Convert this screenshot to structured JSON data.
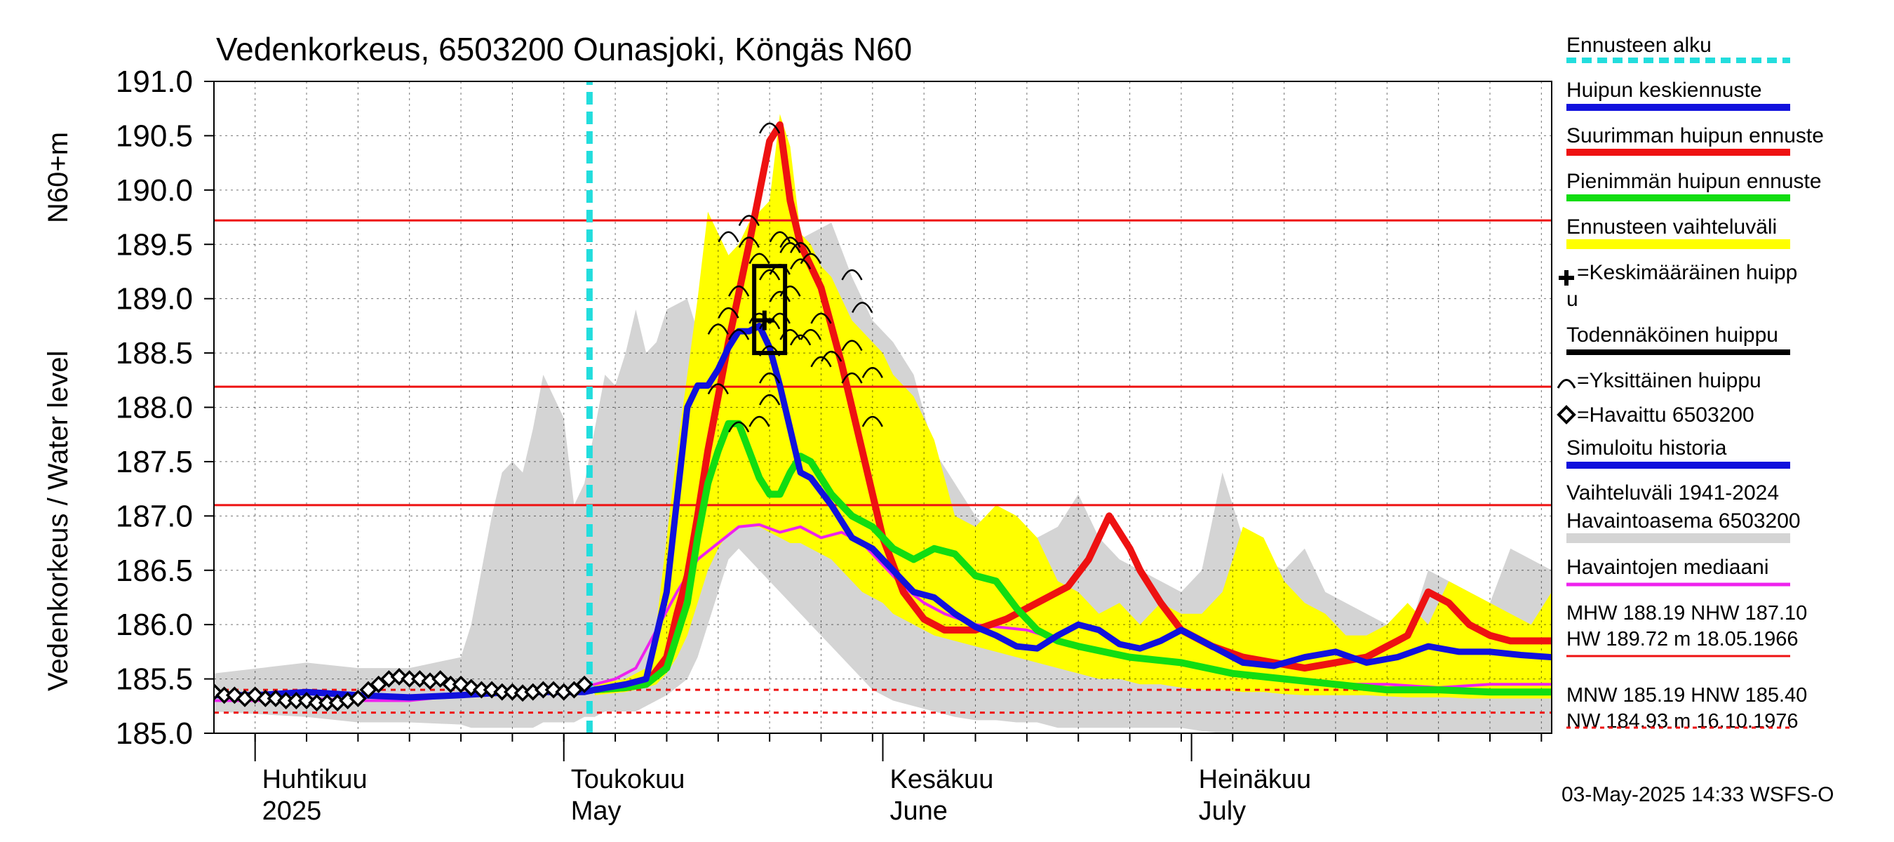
{
  "chart_data": {
    "type": "line",
    "title": "Vedenkorkeus, 6503200 Ounasjoki, Köngäs N60",
    "ylabel_main": "Vedenkorkeus / Water level",
    "ylabel_unit": "N60+m",
    "ylim": [
      185.0,
      191.0
    ],
    "y_ticks": [
      "185.0",
      "185.5",
      "186.0",
      "186.5",
      "187.0",
      "187.5",
      "188.0",
      "188.5",
      "189.0",
      "189.5",
      "190.0",
      "190.5",
      "191.0"
    ],
    "x_range_days": [
      -4,
      126
    ],
    "month_labels": [
      {
        "fi": "Huhtikuu",
        "en": "2025",
        "day": 0
      },
      {
        "fi": "Toukokuu",
        "en": "May",
        "day": 30
      },
      {
        "fi": "Kesäkuu",
        "en": "June",
        "day": 61
      },
      {
        "fi": "Heinäkuu",
        "en": "July",
        "day": 91
      }
    ],
    "forecast_start_day": 32.5,
    "reference_lines": [
      {
        "name": "HW",
        "value": 189.72,
        "style": "solid"
      },
      {
        "name": "MHW",
        "value": 188.19,
        "style": "solid"
      },
      {
        "name": "NHW",
        "value": 187.1,
        "style": "solid"
      },
      {
        "name": "HNW",
        "value": 185.4,
        "style": "dashed"
      },
      {
        "name": "MNW",
        "value": 185.19,
        "style": "dashed"
      }
    ],
    "historical_range": {
      "x": [
        -4,
        5,
        10,
        15,
        20,
        21,
        22,
        23,
        24,
        25,
        26,
        27,
        28,
        29,
        30,
        31,
        32,
        33,
        34,
        35,
        36,
        37,
        38,
        39,
        40,
        42,
        43,
        44,
        45,
        46,
        47,
        48,
        49,
        50,
        52,
        54,
        56,
        58,
        60,
        62,
        64,
        66,
        68,
        70,
        72,
        74,
        76,
        78,
        80,
        82,
        84,
        86,
        88,
        90,
        92,
        94,
        96,
        98,
        100,
        102,
        104,
        106,
        108,
        110,
        112,
        114,
        116,
        118,
        120,
        122,
        124,
        126
      ],
      "upper": [
        185.55,
        185.65,
        185.6,
        185.6,
        185.7,
        186.0,
        186.5,
        187.0,
        187.4,
        187.5,
        187.4,
        187.8,
        188.3,
        188.1,
        187.9,
        187.1,
        187.3,
        187.8,
        188.3,
        188.2,
        188.5,
        188.9,
        188.5,
        188.6,
        188.9,
        189.0,
        188.7,
        189.1,
        189.3,
        189.1,
        189.3,
        189.6,
        189.4,
        189.2,
        189.5,
        189.6,
        189.7,
        189.2,
        188.8,
        188.6,
        188.3,
        187.6,
        187.3,
        187.0,
        186.8,
        186.9,
        186.8,
        186.9,
        187.2,
        186.8,
        186.6,
        186.5,
        186.4,
        186.3,
        186.5,
        187.4,
        186.8,
        186.6,
        186.5,
        186.7,
        186.3,
        186.2,
        186.1,
        186.0,
        185.9,
        186.5,
        186.4,
        186.3,
        186.2,
        186.7,
        186.6,
        186.5
      ],
      "lower": [
        185.2,
        185.15,
        185.1,
        185.1,
        185.08,
        185.05,
        185.05,
        185.05,
        185.05,
        185.05,
        185.05,
        185.05,
        185.1,
        185.1,
        185.1,
        185.1,
        185.15,
        185.15,
        185.2,
        185.2,
        185.2,
        185.2,
        185.25,
        185.3,
        185.35,
        185.5,
        185.7,
        186.0,
        186.3,
        186.6,
        186.7,
        186.6,
        186.5,
        186.4,
        186.2,
        186.0,
        185.8,
        185.6,
        185.4,
        185.3,
        185.25,
        185.2,
        185.15,
        185.12,
        185.12,
        185.1,
        185.1,
        185.05,
        185.05,
        185.05,
        185.05,
        185.05,
        185.05,
        185.05,
        185.02,
        185.0,
        185.0,
        185.0,
        185.0,
        185.0,
        185.0,
        185.0,
        185.0,
        185.0,
        185.0,
        185.0,
        185.0,
        185.0,
        185.0,
        185.0,
        185.0,
        185.0
      ]
    },
    "forecast_range": {
      "x": [
        33,
        36,
        38,
        39,
        40,
        41,
        42,
        43,
        44,
        45,
        46,
        47,
        48,
        49,
        50,
        51,
        52,
        53,
        54,
        55,
        56,
        57,
        58,
        59,
        60,
        61,
        62,
        64,
        66,
        68,
        70,
        72,
        74,
        76,
        78,
        80,
        82,
        84,
        86,
        88,
        90,
        92,
        94,
        96,
        98,
        100,
        102,
        104,
        106,
        108,
        110,
        112,
        114,
        116,
        118,
        120,
        122,
        124,
        126
      ],
      "upper": [
        185.45,
        185.5,
        185.6,
        186.0,
        186.8,
        187.6,
        188.3,
        189.0,
        189.8,
        189.6,
        189.4,
        189.5,
        189.7,
        189.8,
        189.9,
        190.7,
        190.4,
        189.6,
        189.5,
        189.3,
        189.2,
        189.0,
        188.8,
        188.7,
        188.6,
        188.5,
        188.3,
        188.1,
        187.7,
        187.0,
        186.9,
        187.1,
        187.0,
        186.8,
        186.4,
        186.3,
        186.1,
        186.2,
        186.0,
        186.2,
        186.1,
        186.1,
        186.3,
        186.9,
        186.8,
        186.4,
        186.2,
        186.1,
        185.9,
        185.9,
        186.0,
        186.2,
        186.0,
        186.4,
        186.3,
        186.2,
        186.1,
        186.0,
        186.3
      ],
      "lower": [
        185.35,
        185.38,
        185.42,
        185.45,
        185.55,
        185.7,
        185.9,
        186.2,
        186.5,
        186.7,
        186.85,
        186.9,
        186.9,
        186.9,
        186.85,
        186.8,
        186.75,
        186.75,
        186.7,
        186.65,
        186.6,
        186.5,
        186.4,
        186.3,
        186.25,
        186.2,
        186.1,
        186.0,
        185.9,
        185.85,
        185.8,
        185.75,
        185.7,
        185.65,
        185.6,
        185.55,
        185.5,
        185.5,
        185.45,
        185.45,
        185.42,
        185.4,
        185.4,
        185.38,
        185.38,
        185.36,
        185.35,
        185.35,
        185.35,
        185.35,
        185.34,
        185.33,
        185.33,
        185.33,
        185.32,
        185.32,
        185.32,
        185.32,
        185.32
      ]
    },
    "series": [
      {
        "name": "Havaintojen mediaani",
        "color": "#ee22ee",
        "x": [
          -4,
          0,
          5,
          10,
          15,
          20,
          25,
          30,
          33,
          35,
          37,
          39,
          41,
          43,
          45,
          47,
          49,
          51,
          53,
          55,
          57,
          59,
          61,
          63,
          65,
          67,
          70,
          75,
          80,
          85,
          90,
          95,
          100,
          105,
          110,
          115,
          120,
          126
        ],
        "y": [
          185.3,
          185.3,
          185.32,
          185.3,
          185.3,
          185.35,
          185.38,
          185.4,
          185.45,
          185.5,
          185.6,
          185.95,
          186.3,
          186.6,
          186.75,
          186.9,
          186.92,
          186.85,
          186.9,
          186.8,
          186.85,
          186.75,
          186.55,
          186.35,
          186.2,
          186.1,
          186.0,
          185.95,
          185.8,
          185.7,
          185.65,
          185.55,
          185.5,
          185.45,
          185.45,
          185.42,
          185.45,
          185.45
        ]
      },
      {
        "name": "Ennusteen alku",
        "color": "#22dddd",
        "x": [
          32.5,
          32.5
        ],
        "y": [
          185.0,
          191.0
        ]
      },
      {
        "name": "Suurimman huipun ennuste",
        "color": "#ee1111",
        "x": [
          33,
          36,
          38,
          40,
          41,
          42,
          43,
          44,
          46,
          48,
          50,
          51,
          52,
          53,
          55,
          57,
          59,
          61,
          63,
          65,
          67,
          70,
          73,
          76,
          79,
          81,
          83,
          85,
          86,
          88,
          90,
          93,
          96,
          99,
          102,
          105,
          108,
          110,
          111,
          112,
          114,
          116,
          118,
          120,
          122,
          124,
          126
        ],
        "y": [
          185.4,
          185.42,
          185.45,
          185.7,
          186.1,
          186.45,
          187.0,
          187.6,
          188.6,
          189.5,
          190.45,
          190.6,
          189.9,
          189.5,
          189.1,
          188.4,
          187.6,
          186.8,
          186.3,
          186.05,
          185.95,
          185.95,
          186.05,
          186.2,
          186.35,
          186.6,
          187.0,
          186.7,
          186.5,
          186.2,
          185.95,
          185.8,
          185.7,
          185.65,
          185.6,
          185.65,
          185.7,
          185.8,
          185.85,
          185.9,
          186.3,
          186.2,
          186.0,
          185.9,
          185.85,
          185.85,
          185.85
        ]
      },
      {
        "name": "Pienimmän huipun ennuste",
        "color": "#11dd11",
        "x": [
          33,
          36,
          38,
          40,
          42,
          43,
          44,
          45,
          46,
          47,
          48,
          49,
          50,
          51,
          52,
          53,
          54,
          56,
          58,
          60,
          62,
          64,
          66,
          68,
          70,
          72,
          74,
          76,
          78,
          80,
          85,
          90,
          95,
          100,
          105,
          110,
          115,
          120,
          126
        ],
        "y": [
          185.4,
          185.42,
          185.45,
          185.6,
          186.2,
          186.8,
          187.3,
          187.6,
          187.85,
          187.85,
          187.6,
          187.35,
          187.2,
          187.2,
          187.4,
          187.55,
          187.5,
          187.2,
          187.0,
          186.9,
          186.7,
          186.6,
          186.7,
          186.65,
          186.45,
          186.4,
          186.15,
          185.95,
          185.85,
          185.8,
          185.7,
          185.65,
          185.55,
          185.5,
          185.45,
          185.4,
          185.4,
          185.38,
          185.38
        ]
      },
      {
        "name": "Simuloitu historia",
        "color": "#1111dd",
        "x": [
          -4,
          0,
          5,
          10,
          15,
          20,
          25,
          28,
          30,
          32,
          33,
          36,
          38,
          40,
          42,
          43,
          44,
          45,
          46,
          47,
          48,
          49,
          50,
          51,
          52,
          53,
          54,
          56,
          58,
          60,
          62,
          64,
          66,
          68,
          70,
          72,
          74,
          76,
          78,
          80,
          82,
          84,
          86,
          88,
          90,
          93,
          96,
          99,
          102,
          105,
          108,
          111,
          114,
          117,
          120,
          123,
          126
        ],
        "y": [
          185.35,
          185.35,
          185.38,
          185.35,
          185.33,
          185.35,
          185.38,
          185.38,
          185.38,
          185.38,
          185.4,
          185.45,
          185.5,
          186.3,
          188.0,
          188.2,
          188.2,
          188.35,
          188.55,
          188.7,
          188.7,
          188.75,
          188.55,
          188.2,
          187.8,
          187.4,
          187.35,
          187.1,
          186.8,
          186.7,
          186.5,
          186.3,
          186.25,
          186.1,
          185.98,
          185.9,
          185.8,
          185.78,
          185.9,
          186.0,
          185.95,
          185.82,
          185.78,
          185.85,
          185.95,
          185.8,
          185.65,
          185.62,
          185.7,
          185.75,
          185.65,
          185.7,
          185.8,
          185.75,
          185.75,
          185.72,
          185.7
        ]
      }
    ],
    "observed": {
      "name": "Havaittu 6503200",
      "x": [
        -4,
        -3,
        -2,
        -1,
        0,
        1,
        2,
        3,
        4,
        5,
        6,
        7,
        8,
        9,
        10,
        11,
        12,
        13,
        14,
        15,
        16,
        17,
        18,
        19,
        20,
        21,
        22,
        23,
        24,
        25,
        26,
        27,
        28,
        29,
        30,
        31,
        32
      ],
      "y": [
        185.38,
        185.35,
        185.35,
        185.32,
        185.35,
        185.32,
        185.32,
        185.3,
        185.3,
        185.3,
        185.28,
        185.28,
        185.28,
        185.3,
        185.32,
        185.4,
        185.45,
        185.5,
        185.52,
        185.5,
        185.5,
        185.48,
        185.5,
        185.45,
        185.45,
        185.42,
        185.4,
        185.4,
        185.38,
        185.38,
        185.37,
        185.38,
        185.4,
        185.4,
        185.38,
        185.4,
        185.45
      ]
    },
    "individual_peaks": [
      {
        "x": 46,
        "y": 189.6
      },
      {
        "x": 48,
        "y": 189.75
      },
      {
        "x": 47,
        "y": 189.1
      },
      {
        "x": 46,
        "y": 188.9
      },
      {
        "x": 45,
        "y": 188.75
      },
      {
        "x": 47,
        "y": 188.7
      },
      {
        "x": 49,
        "y": 188.85
      },
      {
        "x": 50,
        "y": 188.8
      },
      {
        "x": 51,
        "y": 188.85
      },
      {
        "x": 51,
        "y": 189.05
      },
      {
        "x": 50,
        "y": 189.25
      },
      {
        "x": 51,
        "y": 189.3
      },
      {
        "x": 52,
        "y": 189.1
      },
      {
        "x": 52,
        "y": 189.5
      },
      {
        "x": 51,
        "y": 189.6
      },
      {
        "x": 53,
        "y": 189.5
      },
      {
        "x": 53,
        "y": 189.35
      },
      {
        "x": 54,
        "y": 189.4
      },
      {
        "x": 52,
        "y": 189.55
      },
      {
        "x": 50,
        "y": 188.55
      },
      {
        "x": 50,
        "y": 188.3
      },
      {
        "x": 50,
        "y": 188.1
      },
      {
        "x": 49,
        "y": 187.9
      },
      {
        "x": 47,
        "y": 187.85
      },
      {
        "x": 45,
        "y": 188.2
      },
      {
        "x": 52,
        "y": 188.7
      },
      {
        "x": 53,
        "y": 188.65
      },
      {
        "x": 55,
        "y": 188.85
      },
      {
        "x": 55,
        "y": 188.45
      },
      {
        "x": 56,
        "y": 188.5
      },
      {
        "x": 58,
        "y": 188.6
      },
      {
        "x": 58,
        "y": 189.25
      },
      {
        "x": 59,
        "y": 188.95
      },
      {
        "x": 58,
        "y": 188.3
      },
      {
        "x": 60,
        "y": 188.35
      },
      {
        "x": 60,
        "y": 187.9
      },
      {
        "x": 50,
        "y": 190.6
      },
      {
        "x": 48,
        "y": 189.55
      },
      {
        "x": 49,
        "y": 189.4
      },
      {
        "x": 54,
        "y": 188.7
      }
    ],
    "mean_peak": {
      "x": 49.5,
      "y": 188.8
    },
    "probable_peak_box": {
      "x0": 48.5,
      "x1": 51.5,
      "y0": 188.5,
      "y1": 189.3
    }
  },
  "legend": {
    "ennusteen_alku": "Ennusteen alku",
    "keskiennuste": "Huipun keskiennuste",
    "suurin": "Suurimman huipun ennuste",
    "pienin": "Pienimmän huipun ennuste",
    "vaihteluvali": "Ennusteen vaihteluväli",
    "keskim_huippu_1": "=Keskimääräinen huipp",
    "keskim_huippu_2": "u",
    "todennakoinen": "Todennäköinen huippu",
    "yksittainen": "=Yksittäinen huippu",
    "havaittu": "=Havaittu 6503200",
    "simuloitu": "Simuloitu historia",
    "vaihteluvali_hist_1": "Vaihteluväli 1941-2024",
    "vaihteluvali_hist_2": " Havaintoasema 6503200",
    "mediaani": "Havaintojen mediaani",
    "stats_1": "MHW 188.19 NHW 187.10",
    "stats_2": "HW 189.72 m 18.05.1966",
    "stats_3": "MNW 185.19 HNW 185.40",
    "stats_4": "NW 184.93 m 16.10.1976"
  },
  "colors": {
    "hist_range": "#d4d4d4",
    "forecast_range": "#ffff00",
    "ref_line": "#ee1111",
    "forecast_start": "#22dddd",
    "mean_forecast": "#1111dd"
  },
  "footer": "03-May-2025 14:33 WSFS-O"
}
